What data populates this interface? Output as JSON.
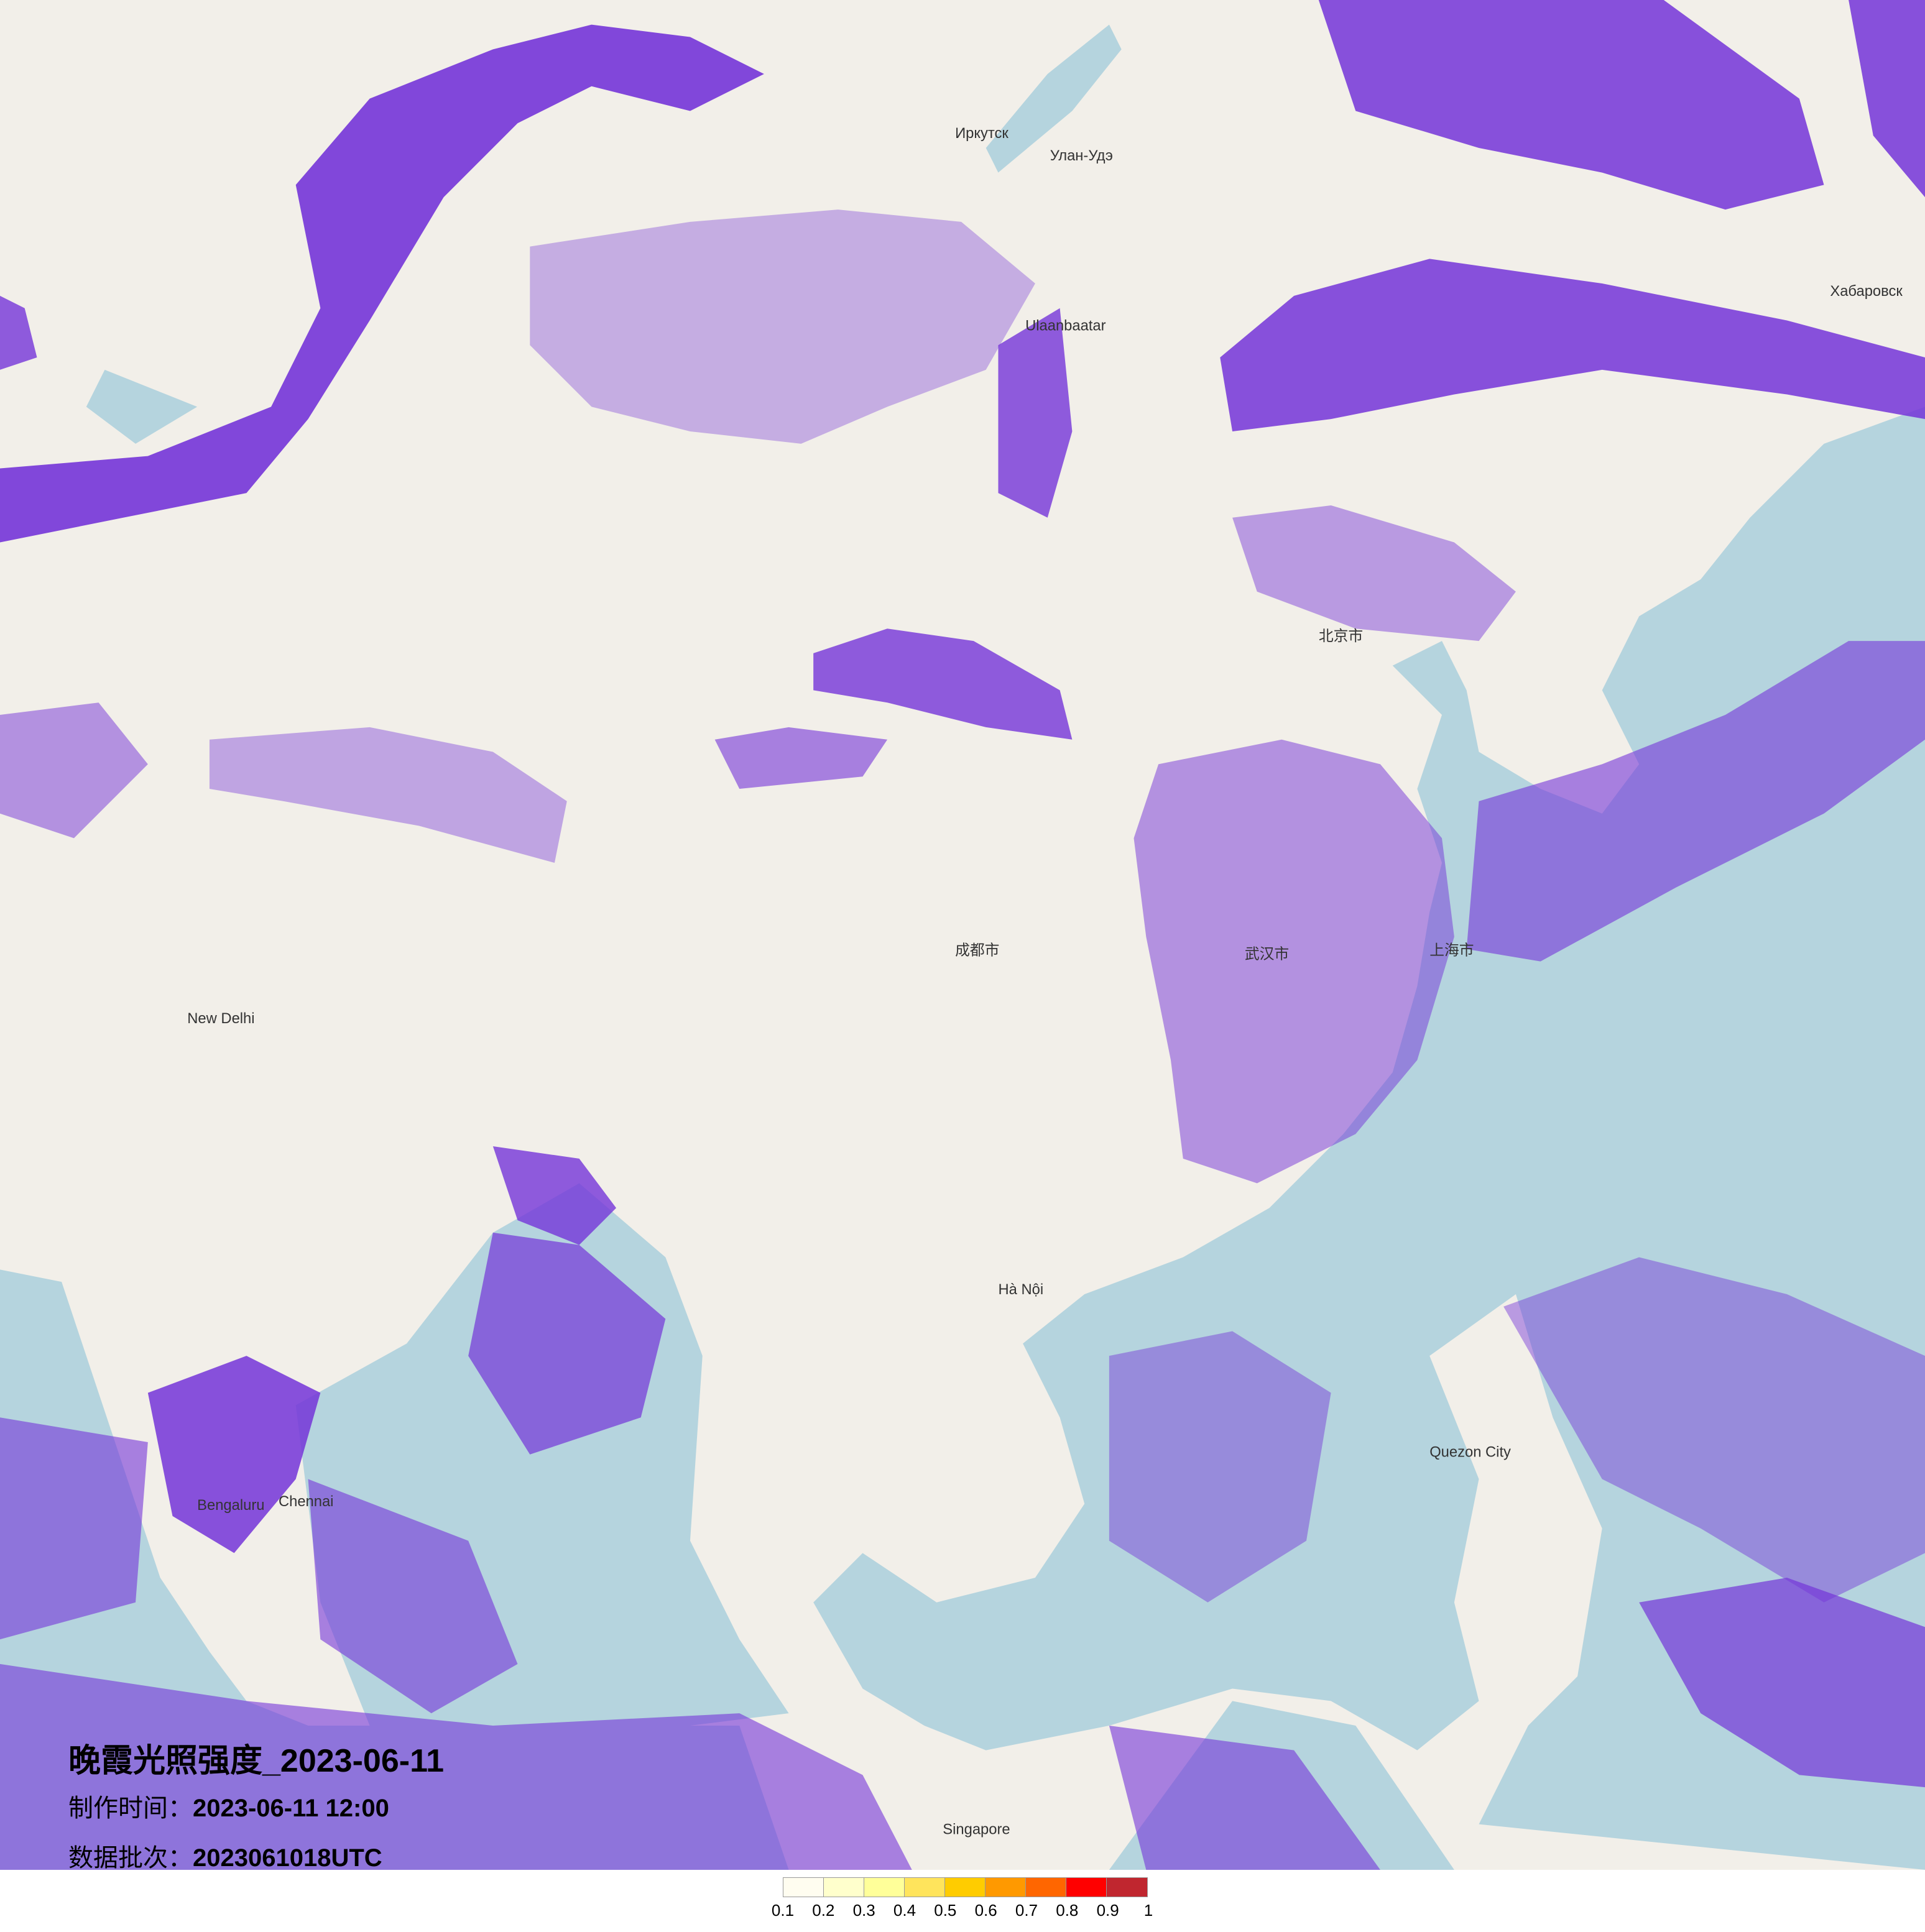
{
  "title": "晚霞光照强度_2023-06-11",
  "production_time": {
    "label": "制作时间：",
    "value": "2023-06-11 12:00"
  },
  "data_batch": {
    "label": "数据批次：",
    "value": "2023061018UTC"
  },
  "legend": {
    "ticks": [
      "0.1",
      "0.2",
      "0.3",
      "0.4",
      "0.5",
      "0.6",
      "0.7",
      "0.8",
      "0.9",
      "1"
    ],
    "colors": [
      "#fffdf0",
      "#ffffcc",
      "#ffff99",
      "#ffe45c",
      "#ffcc00",
      "#ff9900",
      "#ff6600",
      "#ff0000",
      "#c0262f"
    ]
  },
  "map": {
    "land_color": "#f2efe9",
    "sea_color": "#b5d4de",
    "overlay_color": "#7434d8",
    "labels": [
      "Ulaanbaatar",
      "北京市",
      "上海市",
      "武汉市",
      "成都市",
      "Hà Nội",
      "New Delhi",
      "Bengaluru",
      "Chennai",
      "Singapore",
      "Quezon City",
      "Улан-Удэ",
      "Хабаровск",
      "Иркутск"
    ]
  }
}
